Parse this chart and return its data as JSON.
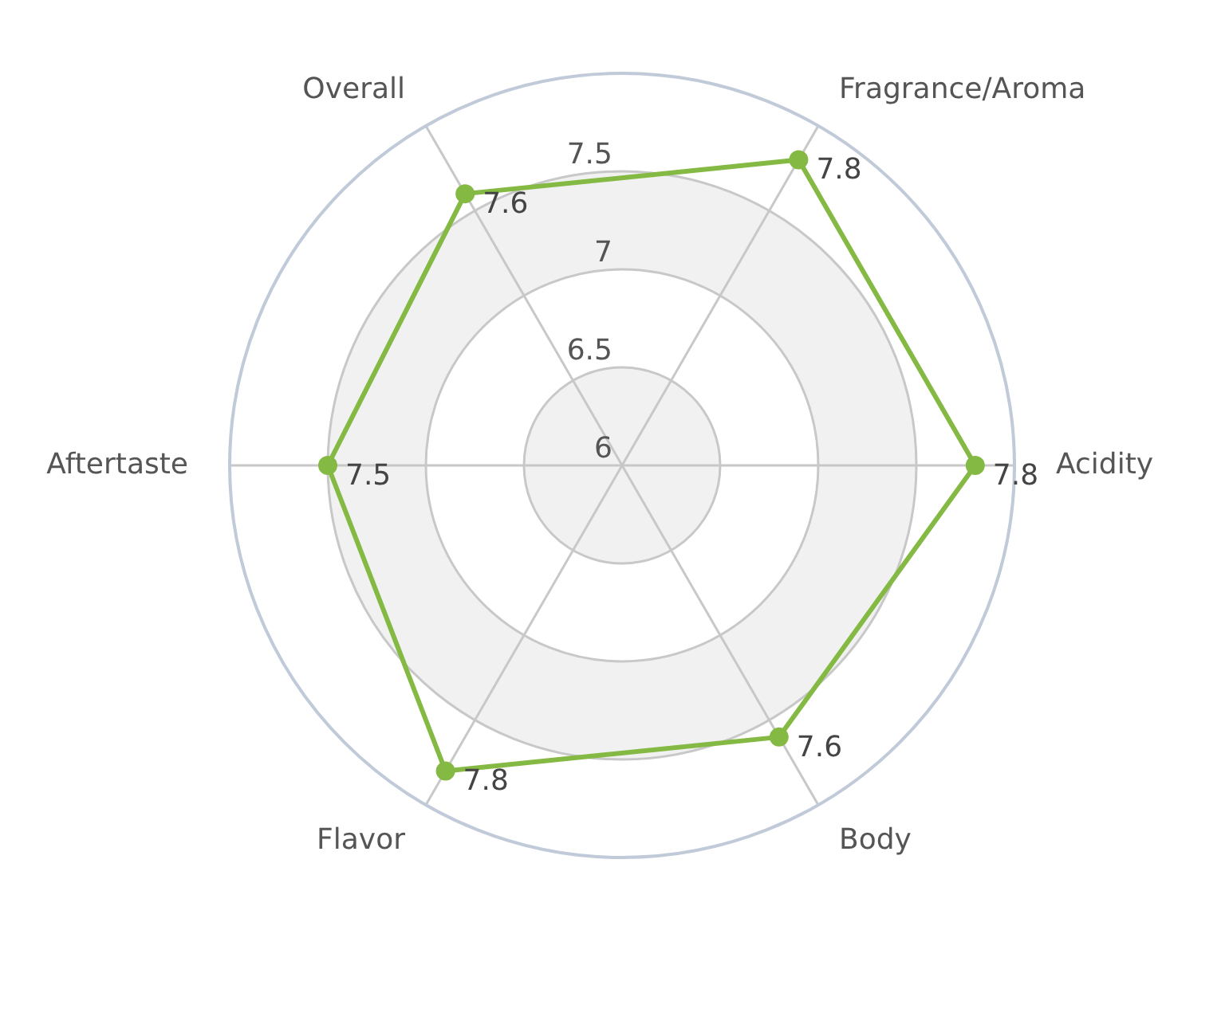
{
  "chart_data": {
    "type": "radar",
    "categories": [
      "Fragrance/Aroma",
      "Acidity",
      "Body",
      "Flavor",
      "Aftertaste",
      "Overall"
    ],
    "series": [
      {
        "color": "#84b943",
        "values": [
          7.8,
          7.8,
          7.6,
          7.8,
          7.5,
          7.6
        ]
      }
    ],
    "ylim": [
      6,
      8
    ],
    "yticks": [
      6,
      6.5,
      7,
      7.5
    ],
    "grid": true,
    "marker": "circle",
    "data_labels": true
  }
}
